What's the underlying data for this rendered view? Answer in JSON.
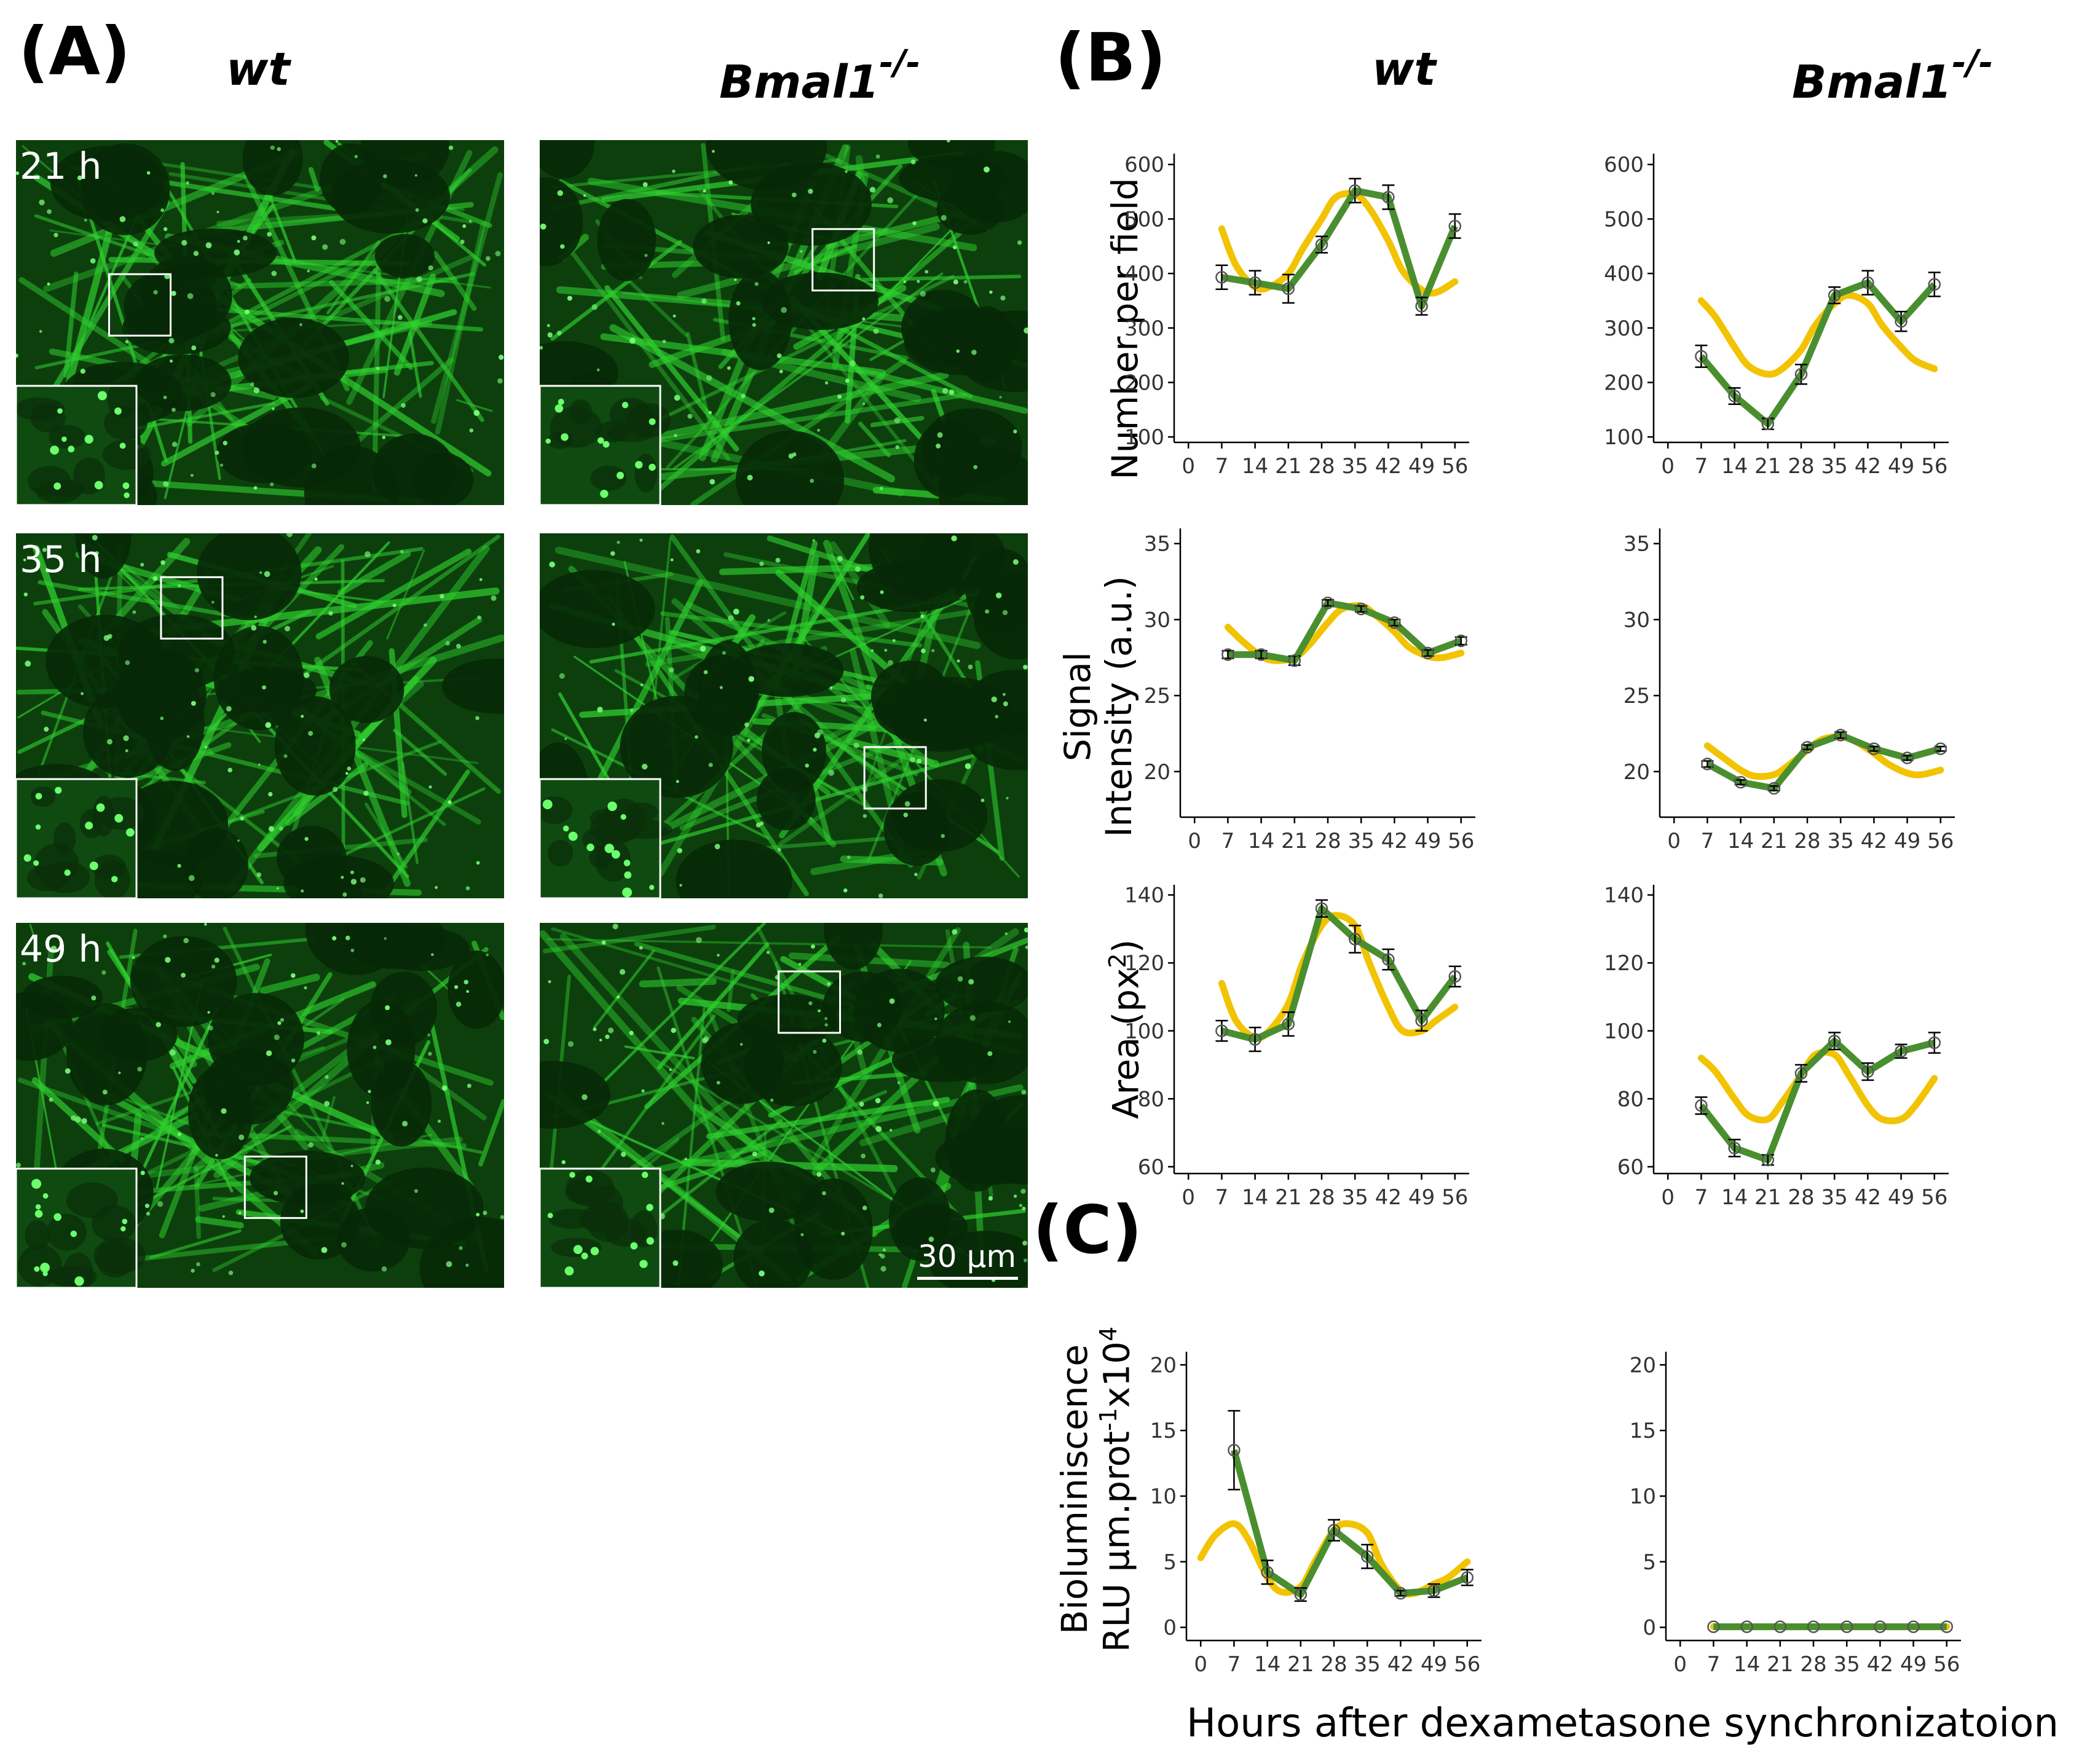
{
  "panel_labels": {
    "a": "(A)",
    "b": "(B)",
    "c": "(C)"
  },
  "columns": {
    "wt": "wt",
    "ko_base": "Bmal1",
    "ko_sup": "-/-"
  },
  "micrographs": {
    "time_labels": [
      "21 h",
      "35 h",
      "49 h"
    ],
    "scale_bar": "30 µm"
  },
  "y_labels": {
    "number": "Number per field",
    "intensity_line1": "Signal",
    "intensity_line2": "Intensity (a.u.)",
    "area_base": "Area (px",
    "area_sup": "2",
    "area_end": ")",
    "biolum_line1": "Bioluminiscence",
    "biolum_line2_base": "RLU µm.prot",
    "biolum_sup1": "-1",
    "biolum_mid": "x10",
    "biolum_sup2": "4"
  },
  "x_title": "Hours after dexametasone synchronizatoion",
  "colors": {
    "observed": "#4a8f2f",
    "fit": "#f2c300",
    "micro_bg": "#062806",
    "micro_fg": "#2fd02f"
  },
  "chart_data": [
    {
      "id": "b-number-wt",
      "type": "line",
      "title": "",
      "xlabel": "",
      "ylabel": "Number per field",
      "xticks": [
        0,
        7,
        14,
        21,
        28,
        35,
        42,
        49,
        56
      ],
      "xlim": [
        -3,
        59
      ],
      "yticks": [
        100,
        200,
        300,
        400,
        500,
        600
      ],
      "ylim": [
        90,
        620
      ],
      "series": [
        {
          "name": "observed",
          "x": [
            7,
            14,
            21,
            28,
            35,
            42,
            49,
            56
          ],
          "y": [
            393,
            383,
            372,
            453,
            552,
            540,
            340,
            487
          ],
          "err": [
            22,
            22,
            26,
            15,
            22,
            22,
            16,
            22
          ]
        },
        {
          "name": "fit",
          "x": [
            7,
            10,
            14,
            17,
            21,
            24,
            28,
            31,
            35,
            38,
            42,
            45,
            49,
            52,
            56
          ],
          "y": [
            482,
            415,
            375,
            375,
            400,
            445,
            500,
            540,
            545,
            520,
            460,
            405,
            370,
            365,
            385
          ]
        }
      ]
    },
    {
      "id": "b-number-ko",
      "type": "line",
      "title": "",
      "xlabel": "",
      "ylabel": "",
      "xticks": [
        0,
        7,
        14,
        21,
        28,
        35,
        42,
        49,
        56
      ],
      "xlim": [
        -3,
        59
      ],
      "yticks": [
        100,
        200,
        300,
        400,
        500,
        600
      ],
      "ylim": [
        90,
        620
      ],
      "series": [
        {
          "name": "observed",
          "x": [
            7,
            14,
            21,
            28,
            35,
            42,
            49,
            56
          ],
          "y": [
            248,
            175,
            124,
            215,
            360,
            383,
            312,
            380
          ],
          "err": [
            20,
            15,
            10,
            18,
            15,
            22,
            18,
            22
          ]
        },
        {
          "name": "fit",
          "x": [
            7,
            10,
            14,
            17,
            21,
            24,
            28,
            31,
            35,
            38,
            42,
            45,
            49,
            52,
            56
          ],
          "y": [
            350,
            320,
            265,
            230,
            215,
            225,
            260,
            305,
            345,
            360,
            345,
            305,
            265,
            240,
            225
          ]
        }
      ]
    },
    {
      "id": "b-intensity-wt",
      "type": "line",
      "title": "",
      "xlabel": "",
      "ylabel": "Signal Intensity (a.u.)",
      "xticks": [
        0,
        7,
        14,
        21,
        28,
        35,
        42,
        49,
        56
      ],
      "xlim": [
        -3,
        59
      ],
      "yticks": [
        20,
        25,
        30,
        35
      ],
      "ylim": [
        17,
        36
      ],
      "series": [
        {
          "name": "observed",
          "x": [
            7,
            14,
            21,
            28,
            35,
            42,
            49,
            56
          ],
          "y": [
            27.7,
            27.7,
            27.3,
            31.1,
            30.7,
            29.8,
            27.8,
            28.6
          ],
          "err": [
            0.25,
            0.25,
            0.3,
            0.2,
            0.2,
            0.2,
            0.2,
            0.25
          ]
        },
        {
          "name": "fit",
          "x": [
            7,
            10,
            14,
            17,
            21,
            24,
            28,
            31,
            35,
            38,
            42,
            45,
            49,
            52,
            56
          ],
          "y": [
            29.5,
            28.6,
            27.6,
            27.3,
            27.5,
            28.3,
            29.8,
            30.7,
            30.9,
            30.3,
            29.2,
            28.2,
            27.6,
            27.5,
            27.8
          ]
        }
      ]
    },
    {
      "id": "b-intensity-ko",
      "type": "line",
      "title": "",
      "xlabel": "",
      "ylabel": "",
      "xticks": [
        0,
        7,
        14,
        21,
        28,
        35,
        42,
        49,
        56
      ],
      "xlim": [
        -3,
        59
      ],
      "yticks": [
        20,
        25,
        30,
        35
      ],
      "ylim": [
        17,
        36
      ],
      "series": [
        {
          "name": "observed",
          "x": [
            7,
            14,
            21,
            28,
            35,
            42,
            49,
            56
          ],
          "y": [
            20.5,
            19.3,
            18.9,
            21.6,
            22.4,
            21.5,
            20.9,
            21.5
          ],
          "err": [
            0.2,
            0.15,
            0.15,
            0.15,
            0.2,
            0.15,
            0.15,
            0.15
          ]
        },
        {
          "name": "fit",
          "x": [
            7,
            10,
            14,
            17,
            21,
            24,
            28,
            31,
            35,
            38,
            42,
            45,
            49,
            52,
            56
          ],
          "y": [
            21.7,
            21.0,
            20.1,
            19.7,
            19.8,
            20.4,
            21.4,
            22.1,
            22.3,
            22.0,
            21.2,
            20.5,
            19.9,
            19.8,
            20.1
          ]
        }
      ]
    },
    {
      "id": "b-area-wt",
      "type": "line",
      "title": "",
      "xlabel": "",
      "ylabel": "Area (px2)",
      "xticks": [
        0,
        7,
        14,
        21,
        28,
        35,
        42,
        49,
        56
      ],
      "xlim": [
        -3,
        59
      ],
      "yticks": [
        60,
        80,
        100,
        120,
        140
      ],
      "ylim": [
        58,
        143
      ],
      "series": [
        {
          "name": "observed",
          "x": [
            7,
            14,
            21,
            28,
            35,
            42,
            49,
            56
          ],
          "y": [
            100,
            97.5,
            102,
            136,
            127,
            121,
            103,
            116
          ],
          "err": [
            3,
            3.5,
            3.5,
            2.5,
            4,
            3,
            3,
            3
          ]
        },
        {
          "name": "fit",
          "x": [
            7,
            10,
            14,
            17,
            21,
            24,
            28,
            31,
            35,
            38,
            42,
            45,
            49,
            52,
            56
          ],
          "y": [
            114,
            103,
            98,
            100,
            108,
            120,
            131,
            134,
            131,
            120,
            107,
            100,
            100,
            103,
            107
          ]
        }
      ]
    },
    {
      "id": "b-area-ko",
      "type": "line",
      "title": "",
      "xlabel": "",
      "ylabel": "",
      "xticks": [
        0,
        7,
        14,
        21,
        28,
        35,
        42,
        49,
        56
      ],
      "xlim": [
        -3,
        59
      ],
      "yticks": [
        60,
        80,
        100,
        120,
        140
      ],
      "ylim": [
        58,
        143
      ],
      "series": [
        {
          "name": "observed",
          "x": [
            7,
            14,
            21,
            28,
            35,
            42,
            49,
            56
          ],
          "y": [
            78,
            65.5,
            62,
            87.5,
            97,
            88,
            94,
            96.5
          ],
          "err": [
            2.5,
            2.5,
            1.5,
            2.5,
            2.5,
            2.5,
            2,
            3
          ]
        },
        {
          "name": "fit",
          "x": [
            7,
            10,
            14,
            17,
            21,
            24,
            28,
            31,
            35,
            38,
            42,
            45,
            49,
            52,
            56
          ],
          "y": [
            92,
            88,
            80,
            75,
            74,
            79,
            87,
            93,
            93,
            87,
            78,
            74,
            74,
            78,
            86
          ]
        }
      ]
    },
    {
      "id": "c-biolum-wt",
      "type": "line",
      "title": "",
      "xlabel": "Hours after dexametasone synchronizatoion",
      "ylabel": "Bioluminiscence RLU µm.prot-1x104",
      "xticks": [
        0,
        7,
        14,
        21,
        28,
        35,
        42,
        49,
        56
      ],
      "xlim": [
        -3,
        59
      ],
      "yticks": [
        0,
        5,
        10,
        15,
        20
      ],
      "ylim": [
        -1,
        21
      ],
      "series": [
        {
          "name": "observed",
          "x": [
            7,
            14,
            21,
            28,
            35,
            42,
            49,
            56
          ],
          "y": [
            13.5,
            4.2,
            2.5,
            7.4,
            5.4,
            2.6,
            2.8,
            3.8
          ],
          "err": [
            3.0,
            0.9,
            0.5,
            0.8,
            0.9,
            0.2,
            0.5,
            0.6
          ]
        },
        {
          "name": "fit",
          "x": [
            0,
            3,
            7,
            10,
            14,
            17,
            21,
            24,
            28,
            31,
            35,
            38,
            42,
            45,
            49,
            52,
            56
          ],
          "y": [
            5.3,
            7.0,
            7.9,
            6.7,
            3.8,
            2.7,
            3.1,
            5.0,
            7.4,
            7.9,
            7.2,
            4.8,
            2.8,
            2.6,
            3.3,
            3.8,
            5.0
          ]
        }
      ]
    },
    {
      "id": "c-biolum-ko",
      "type": "line",
      "title": "",
      "xlabel": "",
      "ylabel": "",
      "xticks": [
        0,
        7,
        14,
        21,
        28,
        35,
        42,
        49,
        56
      ],
      "xlim": [
        -3,
        59
      ],
      "yticks": [
        0,
        5,
        10,
        15,
        20
      ],
      "ylim": [
        -1,
        21
      ],
      "series": [
        {
          "name": "observed",
          "x": [
            7,
            14,
            21,
            28,
            35,
            42,
            49,
            56
          ],
          "y": [
            0.05,
            0.05,
            0.05,
            0.05,
            0.05,
            0.05,
            0.05,
            0.05
          ],
          "err": [
            0,
            0,
            0,
            0,
            0,
            0,
            0,
            0
          ]
        },
        {
          "name": "fit",
          "x": [
            7,
            56
          ],
          "y": [
            0.05,
            0.05
          ]
        }
      ]
    }
  ]
}
